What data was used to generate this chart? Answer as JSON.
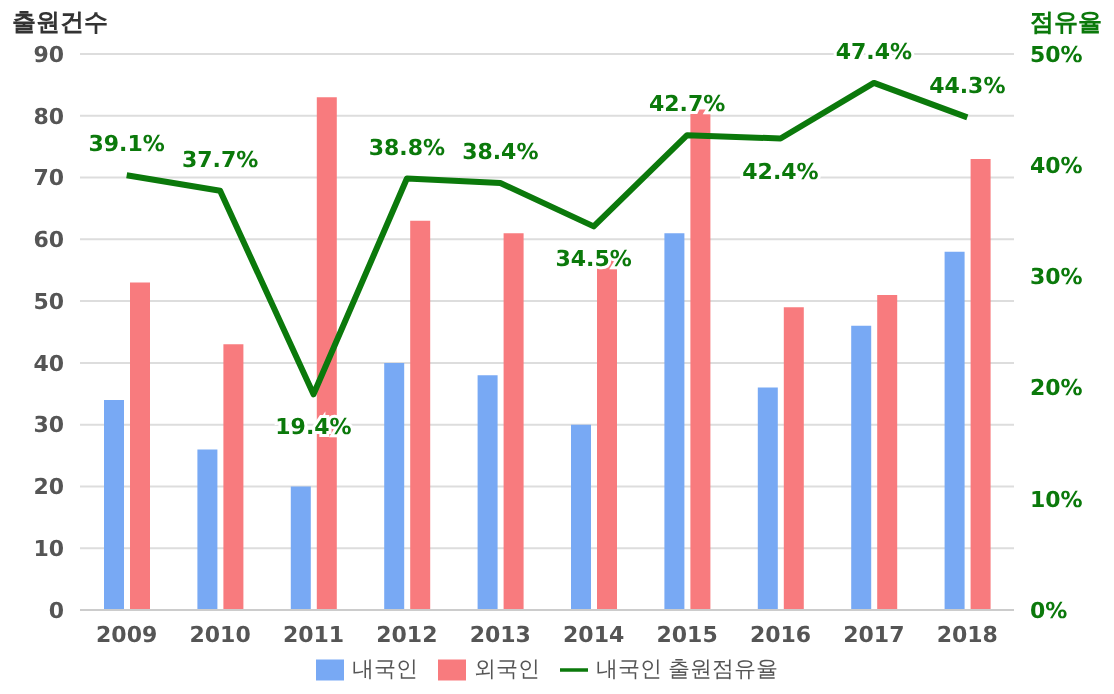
{
  "chart_data": {
    "type": "bar",
    "ylabel": "출원건수",
    "y2label": "점유율",
    "categories": [
      "2009",
      "2010",
      "2011",
      "2012",
      "2013",
      "2014",
      "2015",
      "2016",
      "2017",
      "2018"
    ],
    "series": [
      {
        "name": "내국인",
        "color": "#78a9f4",
        "values": [
          34,
          26,
          20,
          40,
          38,
          30,
          61,
          36,
          46,
          58
        ]
      },
      {
        "name": "외국인",
        "color": "#f87b7e",
        "values": [
          53,
          43,
          83,
          63,
          61,
          57,
          81,
          49,
          51,
          73
        ]
      },
      {
        "name": "내국인 출원점유율",
        "type": "line",
        "axis": "y2",
        "color": "#0b790b",
        "values": [
          39.1,
          37.7,
          19.4,
          38.8,
          38.4,
          34.5,
          42.7,
          42.4,
          47.4,
          44.3
        ],
        "value_labels": [
          "39.1%",
          "37.7%",
          "19.4%",
          "38.8%",
          "38.4%",
          "34.5%",
          "42.7%",
          "42.4%",
          "47.4%",
          "44.3%"
        ]
      }
    ],
    "ylim": [
      0,
      90
    ],
    "yticks": [
      0,
      10,
      20,
      30,
      40,
      50,
      60,
      70,
      80,
      90
    ],
    "y2lim": [
      0,
      50
    ],
    "y2ticks": [
      {
        "value": 0,
        "label": "0%"
      },
      {
        "value": 10,
        "label": "10%"
      },
      {
        "value": 20,
        "label": "20%"
      },
      {
        "value": 30,
        "label": "30%"
      },
      {
        "value": 40,
        "label": "40%"
      },
      {
        "value": 50,
        "label": "50%"
      }
    ],
    "grid": "y",
    "legend": "bottom",
    "marker": "none",
    "line_style": "solid"
  }
}
